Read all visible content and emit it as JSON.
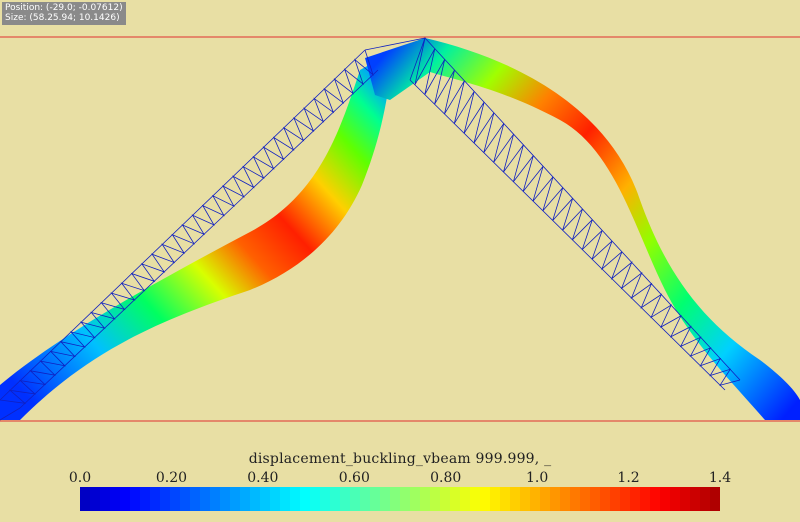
{
  "info": {
    "position": "Position: (-29.0; -0.07612)",
    "size": "Size: (58.25.94; 10.1426)"
  },
  "legend": {
    "title": "displacement_buckling_vbeam 999.999, _",
    "ticks": [
      "0.0",
      "0.20",
      "0.40",
      "0.60",
      "0.80",
      "1.0",
      "1.2",
      "1.4"
    ],
    "tick_values": [
      0.0,
      0.2,
      0.4,
      0.6,
      0.8,
      1.0,
      1.2,
      1.4
    ],
    "range": [
      0.0,
      1.4
    ],
    "colormap": "jet"
  },
  "colors": {
    "background": "#e8dfa4",
    "frame_line": "#e03030",
    "mesh": "#1020c0"
  }
}
